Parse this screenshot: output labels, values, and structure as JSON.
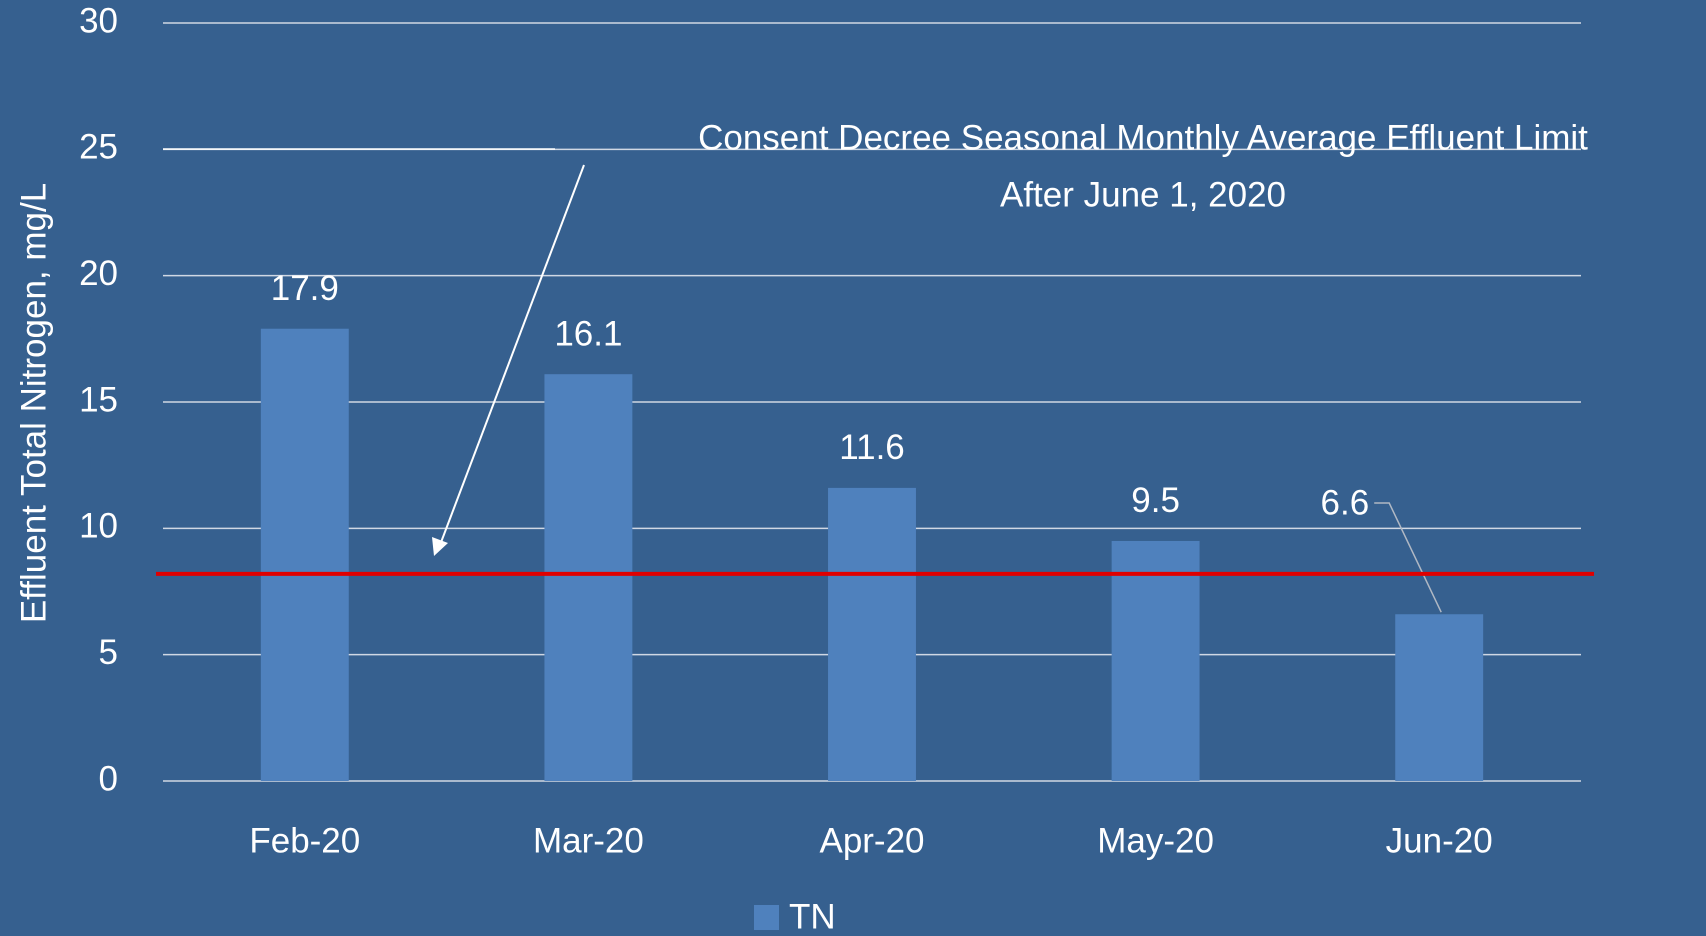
{
  "chart_data": {
    "type": "bar",
    "y_label": "Effluent Total Nitrogen, mg/L",
    "annotation": [
      "Consent Decree Seasonal Monthly Average Effluent Limit",
      "After June 1, 2020"
    ],
    "categories": [
      "Feb-20",
      "Mar-20",
      "Apr-20",
      "May-20",
      "Jun-20"
    ],
    "series": [
      {
        "name": "TN",
        "color": "#4f81bd",
        "values": [
          17.9,
          16.1,
          11.6,
          9.5,
          6.6
        ]
      }
    ],
    "ylim": [
      0,
      30
    ],
    "yticks": [
      0,
      5,
      10,
      15,
      20,
      25,
      30
    ],
    "grid": true,
    "limit_line": {
      "value": 8.2,
      "color": "#e00000"
    },
    "legend": "bottom"
  }
}
